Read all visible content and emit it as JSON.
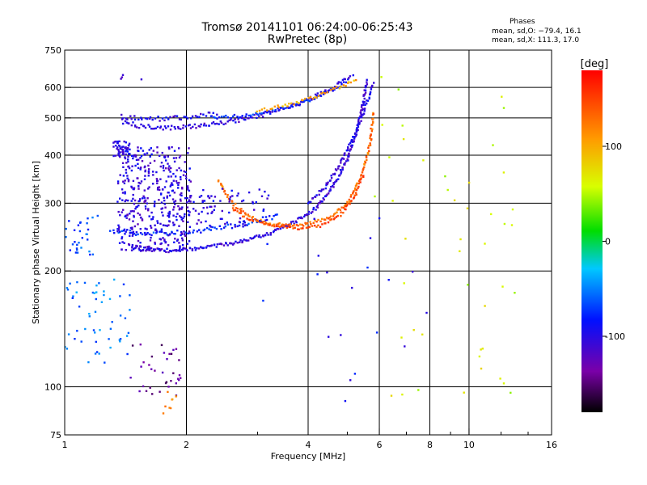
{
  "chart_data": {
    "type": "scatter",
    "title": "Tromsø 20141101 06:24:00-06:25:43",
    "subtitle": "RwPretec (8p)",
    "xlabel": "Frequency [MHz]",
    "ylabel": "Stationary phase Virtual Height [km]",
    "x_scale": "log",
    "y_scale": "log",
    "xlim": [
      1,
      16
    ],
    "ylim": [
      75,
      750
    ],
    "x_ticks": [
      1,
      2,
      4,
      6,
      8,
      10,
      16
    ],
    "x_tick_labels": [
      "1",
      "2",
      "4",
      "6",
      "8",
      "10",
      "16"
    ],
    "x_grid": [
      2,
      4,
      6,
      8,
      10
    ],
    "y_ticks": [
      75,
      100,
      200,
      300,
      400,
      500,
      600,
      750
    ],
    "y_tick_labels": [
      "75",
      "100",
      "200",
      "300",
      "400",
      "500",
      "600",
      "750"
    ],
    "y_grid": [
      100,
      200,
      300,
      400,
      500,
      600
    ],
    "grid": true,
    "colorbar": {
      "label": "[deg]",
      "range": [
        -180,
        180
      ],
      "ticks": [
        100,
        0,
        -100
      ],
      "tick_labels": [
        "100",
        "0",
        "-100"
      ]
    },
    "phase_header": "Phases",
    "phase_lines": [
      "mean, sd,O: −79.4, 16.1",
      "mean, sd,X: 111.3, 17.0"
    ],
    "series": [
      {
        "type": "curve",
        "x": [
          1.38,
          1.5,
          1.7,
          1.9,
          2.2,
          2.6,
          3.0,
          3.4,
          3.8,
          4.2,
          4.6,
          4.9,
          5.2
        ],
        "y": [
          490,
          478,
          470,
          472,
          478,
          490,
          505,
          525,
          548,
          572,
          600,
          625,
          640
        ],
        "phase": -105,
        "spread": 0.025,
        "step": 0.01
      },
      {
        "type": "curve",
        "x": [
          1.38,
          1.5,
          1.7,
          1.9,
          2.1,
          2.4
        ],
        "y": [
          505,
          500,
          498,
          500,
          505,
          512
        ],
        "phase": -100,
        "spread": 0.03,
        "step": 0.012
      },
      {
        "type": "curve",
        "x": [
          2.3,
          2.7,
          3.1,
          3.5,
          3.9,
          4.3,
          4.7,
          5.0
        ],
        "y": [
          500,
          505,
          515,
          530,
          548,
          572,
          600,
          620
        ],
        "phase": -80,
        "spread": 0.02,
        "step": 0.012
      },
      {
        "type": "curve",
        "x": [
          3.0,
          3.4,
          3.8,
          4.2,
          4.6,
          5.0,
          5.3
        ],
        "y": [
          520,
          535,
          550,
          570,
          590,
          615,
          635
        ],
        "phase": 100,
        "spread": 0.02,
        "step": 0.014
      },
      {
        "type": "curve",
        "x": [
          1.45,
          1.6,
          1.8,
          2.0,
          2.3,
          2.7,
          3.2,
          3.7,
          4.2,
          4.6,
          5.0,
          5.3,
          5.5,
          5.6
        ],
        "y": [
          232,
          228,
          226,
          227,
          231,
          238,
          250,
          268,
          292,
          330,
          390,
          470,
          560,
          630
        ],
        "phase": -105,
        "spread": 0.02,
        "step": 0.008
      },
      {
        "type": "curve",
        "x": [
          1.3,
          1.45,
          1.6,
          1.8,
          2.0,
          2.3,
          2.6,
          3.0,
          3.4
        ],
        "y": [
          255,
          252,
          250,
          250,
          252,
          256,
          262,
          270,
          280
        ],
        "phase": -75,
        "spread": 0.03,
        "step": 0.012
      },
      {
        "type": "curve",
        "x": [
          4.0,
          4.4,
          4.8,
          5.2,
          5.5,
          5.7,
          5.8
        ],
        "y": [
          300,
          330,
          380,
          450,
          520,
          580,
          620
        ],
        "phase": -100,
        "spread": 0.02,
        "step": 0.01
      },
      {
        "type": "curve",
        "x": [
          2.4,
          2.6,
          2.9,
          3.2,
          3.6,
          4.0,
          4.5,
          5.0,
          5.4,
          5.7,
          5.8
        ],
        "y": [
          345,
          300,
          275,
          265,
          262,
          265,
          275,
          300,
          350,
          430,
          520
        ],
        "phase": 130,
        "spread": 0.02,
        "step": 0.01
      },
      {
        "type": "curve",
        "x": [
          2.6,
          2.9,
          3.3,
          3.8,
          4.3,
          4.8,
          5.2,
          5.5
        ],
        "y": [
          290,
          270,
          262,
          258,
          262,
          280,
          310,
          360
        ],
        "phase": 145,
        "spread": 0.015,
        "step": 0.012
      },
      {
        "type": "cloud",
        "x": [
          1.35,
          2.05
        ],
        "y": [
          225,
          420
        ],
        "phase": -105,
        "n": 420
      },
      {
        "type": "cloud",
        "x": [
          2.0,
          3.2
        ],
        "y": [
          260,
          330
        ],
        "phase": -100,
        "n": 80
      },
      {
        "type": "cloud",
        "x": [
          1.32,
          1.45
        ],
        "y": [
          395,
          435
        ],
        "phase": -100,
        "n": 50
      },
      {
        "type": "cloud",
        "x": [
          1.0,
          1.22
        ],
        "y": [
          220,
          280
        ],
        "phase": -65,
        "n": 30
      },
      {
        "type": "cloud",
        "x": [
          1.0,
          1.45
        ],
        "y": [
          115,
          190
        ],
        "phase": -55,
        "n": 55
      },
      {
        "type": "cloud",
        "x": [
          1.45,
          1.95
        ],
        "y": [
          90,
          130
        ],
        "phase": -140,
        "n": 35
      },
      {
        "type": "cloud",
        "x": [
          1.75,
          1.9
        ],
        "y": [
          85,
          100
        ],
        "phase": 115,
        "n": 8
      },
      {
        "type": "cloud",
        "x": [
          5.8,
          13.0
        ],
        "y": [
          90,
          640
        ],
        "phase": 60,
        "n": 45
      },
      {
        "type": "cloud",
        "x": [
          3.0,
          8.0
        ],
        "y": [
          90,
          300
        ],
        "phase": -90,
        "n": 20
      },
      {
        "type": "cloud",
        "x": [
          1.05,
          1.95
        ],
        "y": [
          620,
          660
        ],
        "phase": -120,
        "n": 4
      }
    ]
  }
}
